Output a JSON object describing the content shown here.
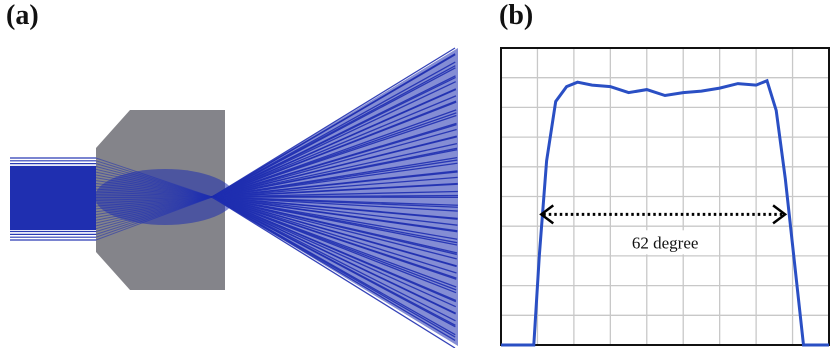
{
  "panel_a": {
    "label": "(a)",
    "colors": {
      "ray": "#1f2fb0",
      "lens": "#84848a",
      "background": "#ffffff"
    }
  },
  "panel_b": {
    "label": "(b)",
    "annotation": "62 degree",
    "colors": {
      "curve": "#2a4fc4",
      "grid": "#c8c8c8",
      "frame": "#111111",
      "arrow": "#000000"
    },
    "grid": true,
    "chart_data": {
      "type": "line",
      "title": "",
      "xlabel": "",
      "ylabel": "",
      "grid_columns": 9,
      "grid_rows": 10,
      "xlim": [
        0,
        9
      ],
      "ylim": [
        0,
        10
      ],
      "series": [
        {
          "x": [
            0,
            0.9,
            1.05,
            1.25,
            1.5,
            1.8,
            2.1,
            2.5,
            3.0,
            3.5,
            4.0,
            4.5,
            5.0,
            5.5,
            6.0,
            6.5,
            7.0,
            7.3,
            7.55,
            7.8,
            8.05,
            8.3,
            8.55,
            9.0
          ],
          "y": [
            0,
            0,
            3.0,
            6.2,
            8.2,
            8.7,
            8.85,
            8.75,
            8.7,
            8.5,
            8.6,
            8.4,
            8.5,
            8.55,
            8.65,
            8.8,
            8.75,
            8.9,
            7.9,
            5.6,
            2.8,
            0,
            0,
            0
          ]
        }
      ],
      "annotation": {
        "text": "62 degree",
        "from_x": 1.05,
        "to_x": 7.85,
        "y": 4.4
      }
    }
  }
}
